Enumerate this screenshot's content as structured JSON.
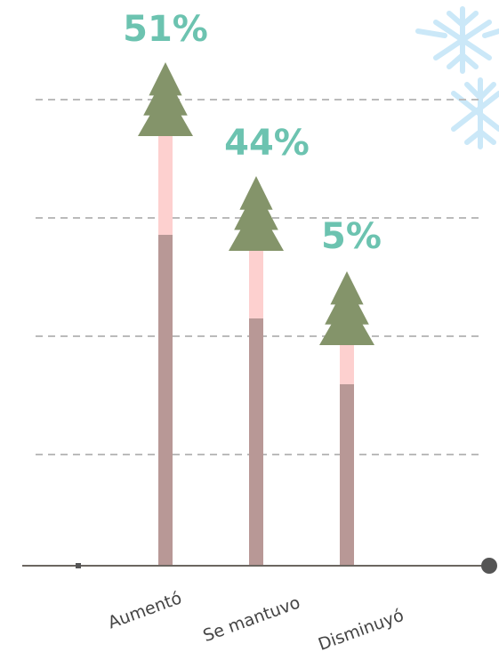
{
  "chart_data": {
    "type": "bar",
    "categories": [
      "Aumentó",
      "Se mantuvo",
      "Disminuyó"
    ],
    "values": [
      51,
      44,
      5
    ],
    "value_labels": [
      "51%",
      "44%",
      "5%"
    ],
    "colors": {
      "pole": "#b89896",
      "pole_top": "#fdd0cf",
      "tree": "#84946a"
    }
  }
}
